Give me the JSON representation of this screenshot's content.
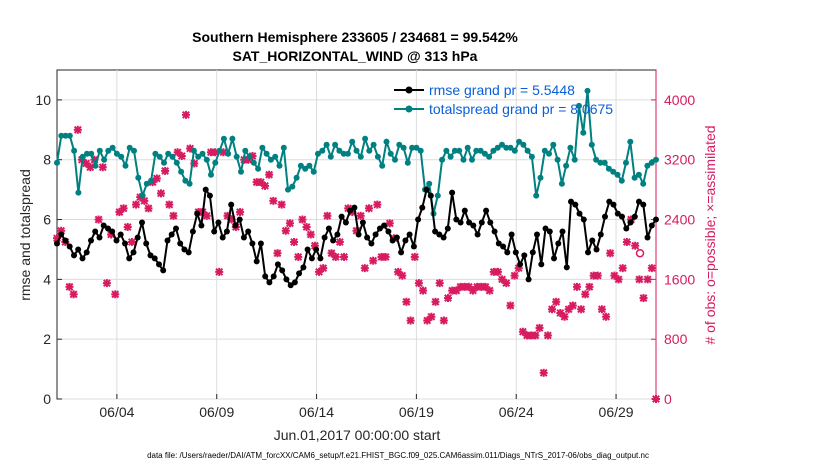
{
  "chart_data": {
    "type": "line",
    "title": "Southern Hemisphere 233605 / 234681 = 99.542%",
    "subtitle": "SAT_HORIZONTAL_WIND @ 313 hPa",
    "xlabel": "Jun.01,2017 00:00:00 start",
    "ylabel": "rmse and totalspread",
    "y2label": "# of obs: o=possible; ×=assimilated",
    "x_ticks": [
      "06/04",
      "06/09",
      "06/14",
      "06/19",
      "06/24",
      "06/29"
    ],
    "x_tick_days": [
      4,
      9,
      14,
      19,
      24,
      29
    ],
    "xlim": [
      1,
      31
    ],
    "ylim": [
      0,
      11
    ],
    "y_ticks": [
      "0",
      "2",
      "4",
      "6",
      "8",
      "10"
    ],
    "y2lim": [
      0,
      4400
    ],
    "y2_ticks": [
      "0",
      "800",
      "1600",
      "2400",
      "3200",
      "4000"
    ],
    "legend_position": "top-right",
    "footer": "data file: /Users/raeder/DAI/ATM_forcXX/CAM6_setup/f.e21.FHIST_BGC.f09_025.CAM6assim.011/Diags_NTrS_2017-06/obs_diag_output.nc",
    "colors": {
      "rmse": "#000000",
      "spread": "#008080",
      "obs": "#d81b60"
    },
    "series": [
      {
        "name": "rmse grand pr = 5.5448",
        "axis": "left",
        "values": [
          5.2,
          5.5,
          5.3,
          5.1,
          4.8,
          5.0,
          4.7,
          4.9,
          5.3,
          5.6,
          5.4,
          5.8,
          5.7,
          5.6,
          5.3,
          5.5,
          5.2,
          4.7,
          4.9,
          5.4,
          5.9,
          5.2,
          4.8,
          4.7,
          4.5,
          4.3,
          5.3,
          5.5,
          5.7,
          5.2,
          5.0,
          4.9,
          5.6,
          6.2,
          5.8,
          7.0,
          6.8,
          5.6,
          5.9,
          5.4,
          5.6,
          6.5,
          5.8,
          6.0,
          5.4,
          5.6,
          5.2,
          4.6,
          5.2,
          4.1,
          3.9,
          4.1,
          4.5,
          4.3,
          4.0,
          3.8,
          3.9,
          4.2,
          4.4,
          5.0,
          4.7,
          5.0,
          4.7,
          5.4,
          5.7,
          5.3,
          5.5,
          6.1,
          5.9,
          6.3,
          6.4,
          5.5,
          5.9,
          5.4,
          5.2,
          5.5,
          5.7,
          5.8,
          5.6,
          5.3,
          5.4,
          4.9,
          5.3,
          5.5,
          5.1,
          6.0,
          6.4,
          7.0,
          6.8,
          5.6,
          5.5,
          5.4,
          5.7,
          6.9,
          6.0,
          5.9,
          6.3,
          5.9,
          5.8,
          5.5,
          5.9,
          6.3,
          5.9,
          5.6,
          5.2,
          5.1,
          4.9,
          5.5,
          4.9,
          4.5,
          4.8,
          4.0,
          4.9,
          5.5,
          4.5,
          5.7,
          5.6,
          4.7,
          5.2,
          5.6,
          4.4,
          6.6,
          6.5,
          6.2,
          6.0,
          4.9,
          5.3,
          5.0,
          5.5,
          6.1,
          6.6,
          6.5,
          6.2,
          6.1,
          5.7,
          5.9,
          6.1,
          6.6,
          6.5,
          5.4,
          5.8,
          6.0
        ]
      },
      {
        "name": "totalspread grand pr = 8.0675",
        "axis": "left",
        "values": [
          7.9,
          8.8,
          8.8,
          8.8,
          8.3,
          6.9,
          8.1,
          8.2,
          8.2,
          7.8,
          8.3,
          8.0,
          8.3,
          8.4,
          8.2,
          8.1,
          7.8,
          8.4,
          8.3,
          7.4,
          6.8,
          7.2,
          7.3,
          8.2,
          8.1,
          7.9,
          8.2,
          8.1,
          7.9,
          7.6,
          7.3,
          7.2,
          8.3,
          8.1,
          8.2,
          8.0,
          7.5,
          7.9,
          8.3,
          8.7,
          8.2,
          8.7,
          8.1,
          7.6,
          8.3,
          8.1,
          7.9,
          7.7,
          8.4,
          8.2,
          8.0,
          8.1,
          7.8,
          8.4,
          7.0,
          7.1,
          7.4,
          7.8,
          7.7,
          7.8,
          7.6,
          8.2,
          8.3,
          8.5,
          8.1,
          8.5,
          8.3,
          8.2,
          8.2,
          8.6,
          8.3,
          8.1,
          8.7,
          8.3,
          8.5,
          8.1,
          7.8,
          8.6,
          8.2,
          8.0,
          8.5,
          8.4,
          7.9,
          8.4,
          8.4,
          8.3,
          7.0,
          7.2,
          6.2,
          6.8,
          8.0,
          8.3,
          8.1,
          8.3,
          8.3,
          8.0,
          8.4,
          8.0,
          8.3,
          8.3,
          8.2,
          8.1,
          8.3,
          8.4,
          8.5,
          8.4,
          8.4,
          8.3,
          8.6,
          8.5,
          8.3,
          8.1,
          6.8,
          7.4,
          8.3,
          8.2,
          8.5,
          8.0,
          7.2,
          7.8,
          8.4,
          8.0,
          9.8,
          8.9,
          10.3,
          8.5,
          8.0,
          7.9,
          7.9,
          7.7,
          7.6,
          7.5,
          7.3,
          7.9,
          8.6,
          7.4,
          7.5,
          7.2,
          7.8,
          7.9,
          8.0
        ]
      },
      {
        "name": "assimilated obs",
        "axis": "right",
        "marker": "x",
        "values": [
          2150,
          2250,
          2100,
          1500,
          1400,
          3600,
          3200,
          3150,
          3100,
          3200,
          2400,
          3100,
          1550,
          2200,
          1400,
          2500,
          2550,
          2300,
          2100,
          2600,
          2700,
          2650,
          2550,
          2900,
          2950,
          2750,
          3050,
          2600,
          2450,
          3300,
          3250,
          3800,
          3350,
          3150,
          2500,
          2500,
          2450,
          3300,
          3300,
          1700,
          3300,
          2450,
          2400,
          2300,
          2500,
          3200,
          3200,
          3250,
          2900,
          2900,
          2850,
          3000,
          2650,
          1950,
          2600,
          2250,
          2350,
          2100,
          1900,
          2400,
          2300,
          2200,
          2050,
          1700,
          1750,
          2450,
          1950,
          1900,
          2100,
          1900,
          2550,
          2500,
          2250,
          2450,
          1750,
          2550,
          1850,
          2600,
          1900,
          1900,
          2350,
          2150,
          1700,
          1650,
          1300,
          1050,
          1900,
          1550,
          1450,
          1050,
          1100,
          1300,
          1550,
          1050,
          1350,
          1450,
          1450,
          1500,
          1500,
          1500,
          1450,
          1500,
          1500,
          1500,
          1450,
          1700,
          1700,
          1600,
          1550,
          1250,
          1650,
          1750,
          900,
          850,
          850,
          850,
          950,
          350,
          850,
          1200,
          1300,
          1150,
          1100,
          1200,
          1250,
          1500,
          1200,
          1400,
          1500,
          1650,
          1650,
          1200,
          1100,
          1950,
          1650,
          1600,
          1750,
          2100,
          2400,
          2050,
          1600,
          1350,
          1600,
          1750,
          0
        ]
      },
      {
        "name": "possible obs",
        "axis": "right",
        "marker": "o",
        "note_values": [
          1950
        ]
      }
    ]
  }
}
